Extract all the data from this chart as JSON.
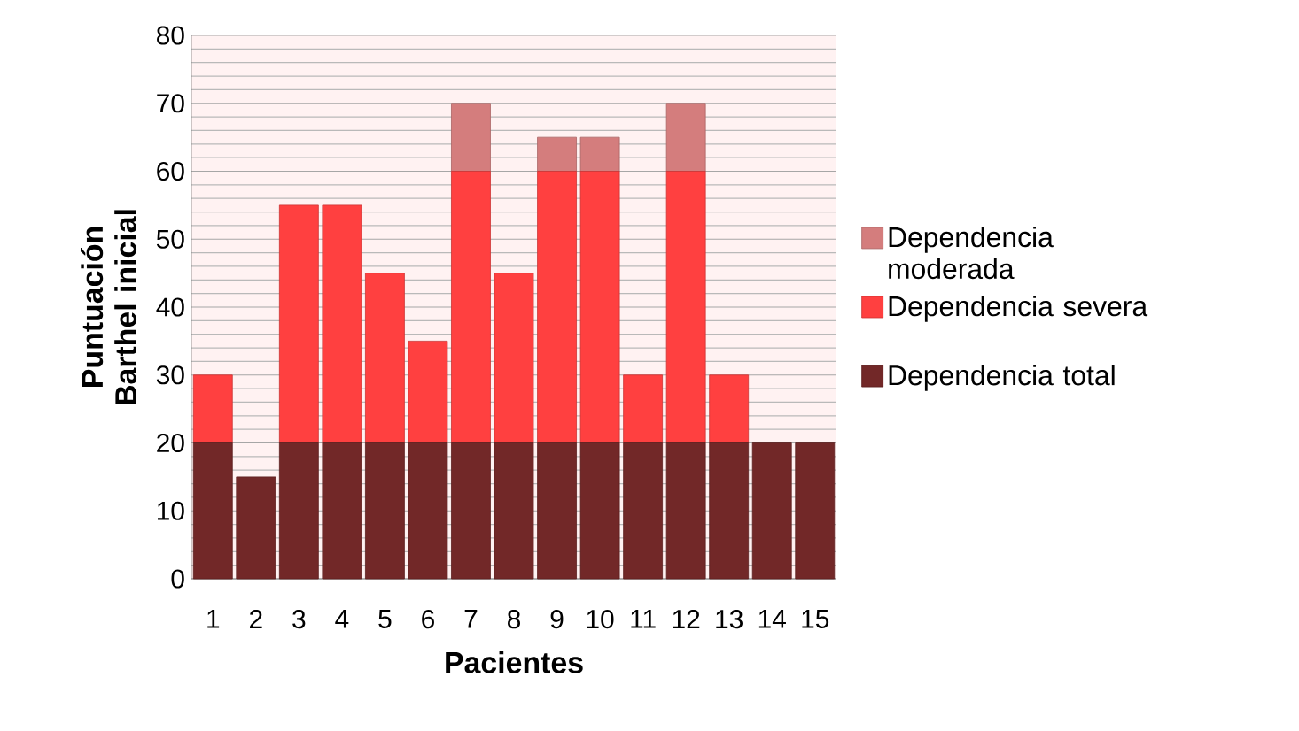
{
  "chart_data": {
    "type": "bar",
    "stacked": true,
    "xlabel": "Pacientes",
    "ylabel": "Puntuación Barthel inicial",
    "categories": [
      "1",
      "2",
      "3",
      "4",
      "5",
      "6",
      "7",
      "8",
      "9",
      "10",
      "11",
      "12",
      "13",
      "14",
      "15"
    ],
    "series": [
      {
        "name": "Dependencia total",
        "color": "#722828",
        "values": [
          20,
          15,
          20,
          20,
          20,
          20,
          20,
          20,
          20,
          20,
          20,
          20,
          20,
          20,
          20
        ]
      },
      {
        "name": "Dependencia severa",
        "color": "#ff4040",
        "values": [
          10,
          0,
          35,
          35,
          25,
          15,
          40,
          25,
          40,
          40,
          10,
          40,
          10,
          0,
          0
        ]
      },
      {
        "name": "Dependencia moderada",
        "color": "#d47d7d",
        "values": [
          0,
          0,
          0,
          0,
          0,
          0,
          10,
          0,
          5,
          5,
          0,
          10,
          0,
          0,
          0
        ]
      }
    ],
    "ylim": [
      0,
      80
    ],
    "yticks": [
      0,
      10,
      20,
      30,
      40,
      50,
      60,
      70,
      80
    ],
    "grid": "y",
    "legend": "right"
  }
}
